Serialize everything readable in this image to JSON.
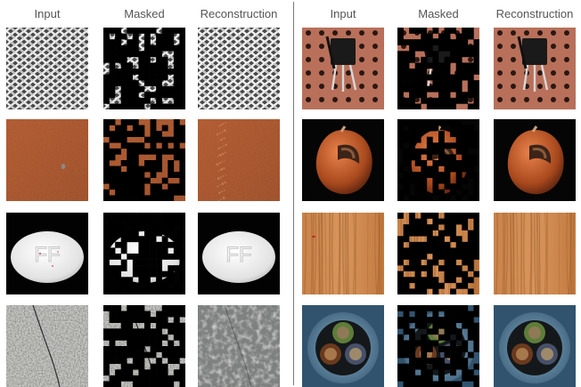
{
  "headers": {
    "left": [
      "Input",
      "Masked",
      "Reconstruction"
    ],
    "right": [
      "Input",
      "Masked",
      "Reconstruction"
    ]
  },
  "rows": [
    {
      "left": "grid",
      "right": "transistor"
    },
    {
      "left": "leather",
      "right": "hazelnut"
    },
    {
      "left": "pill",
      "right": "wood"
    },
    {
      "left": "tile",
      "right": "cable"
    }
  ],
  "colors": {
    "mask": "#000000",
    "divider": "#7a7a7a",
    "header_text": "#555555"
  }
}
